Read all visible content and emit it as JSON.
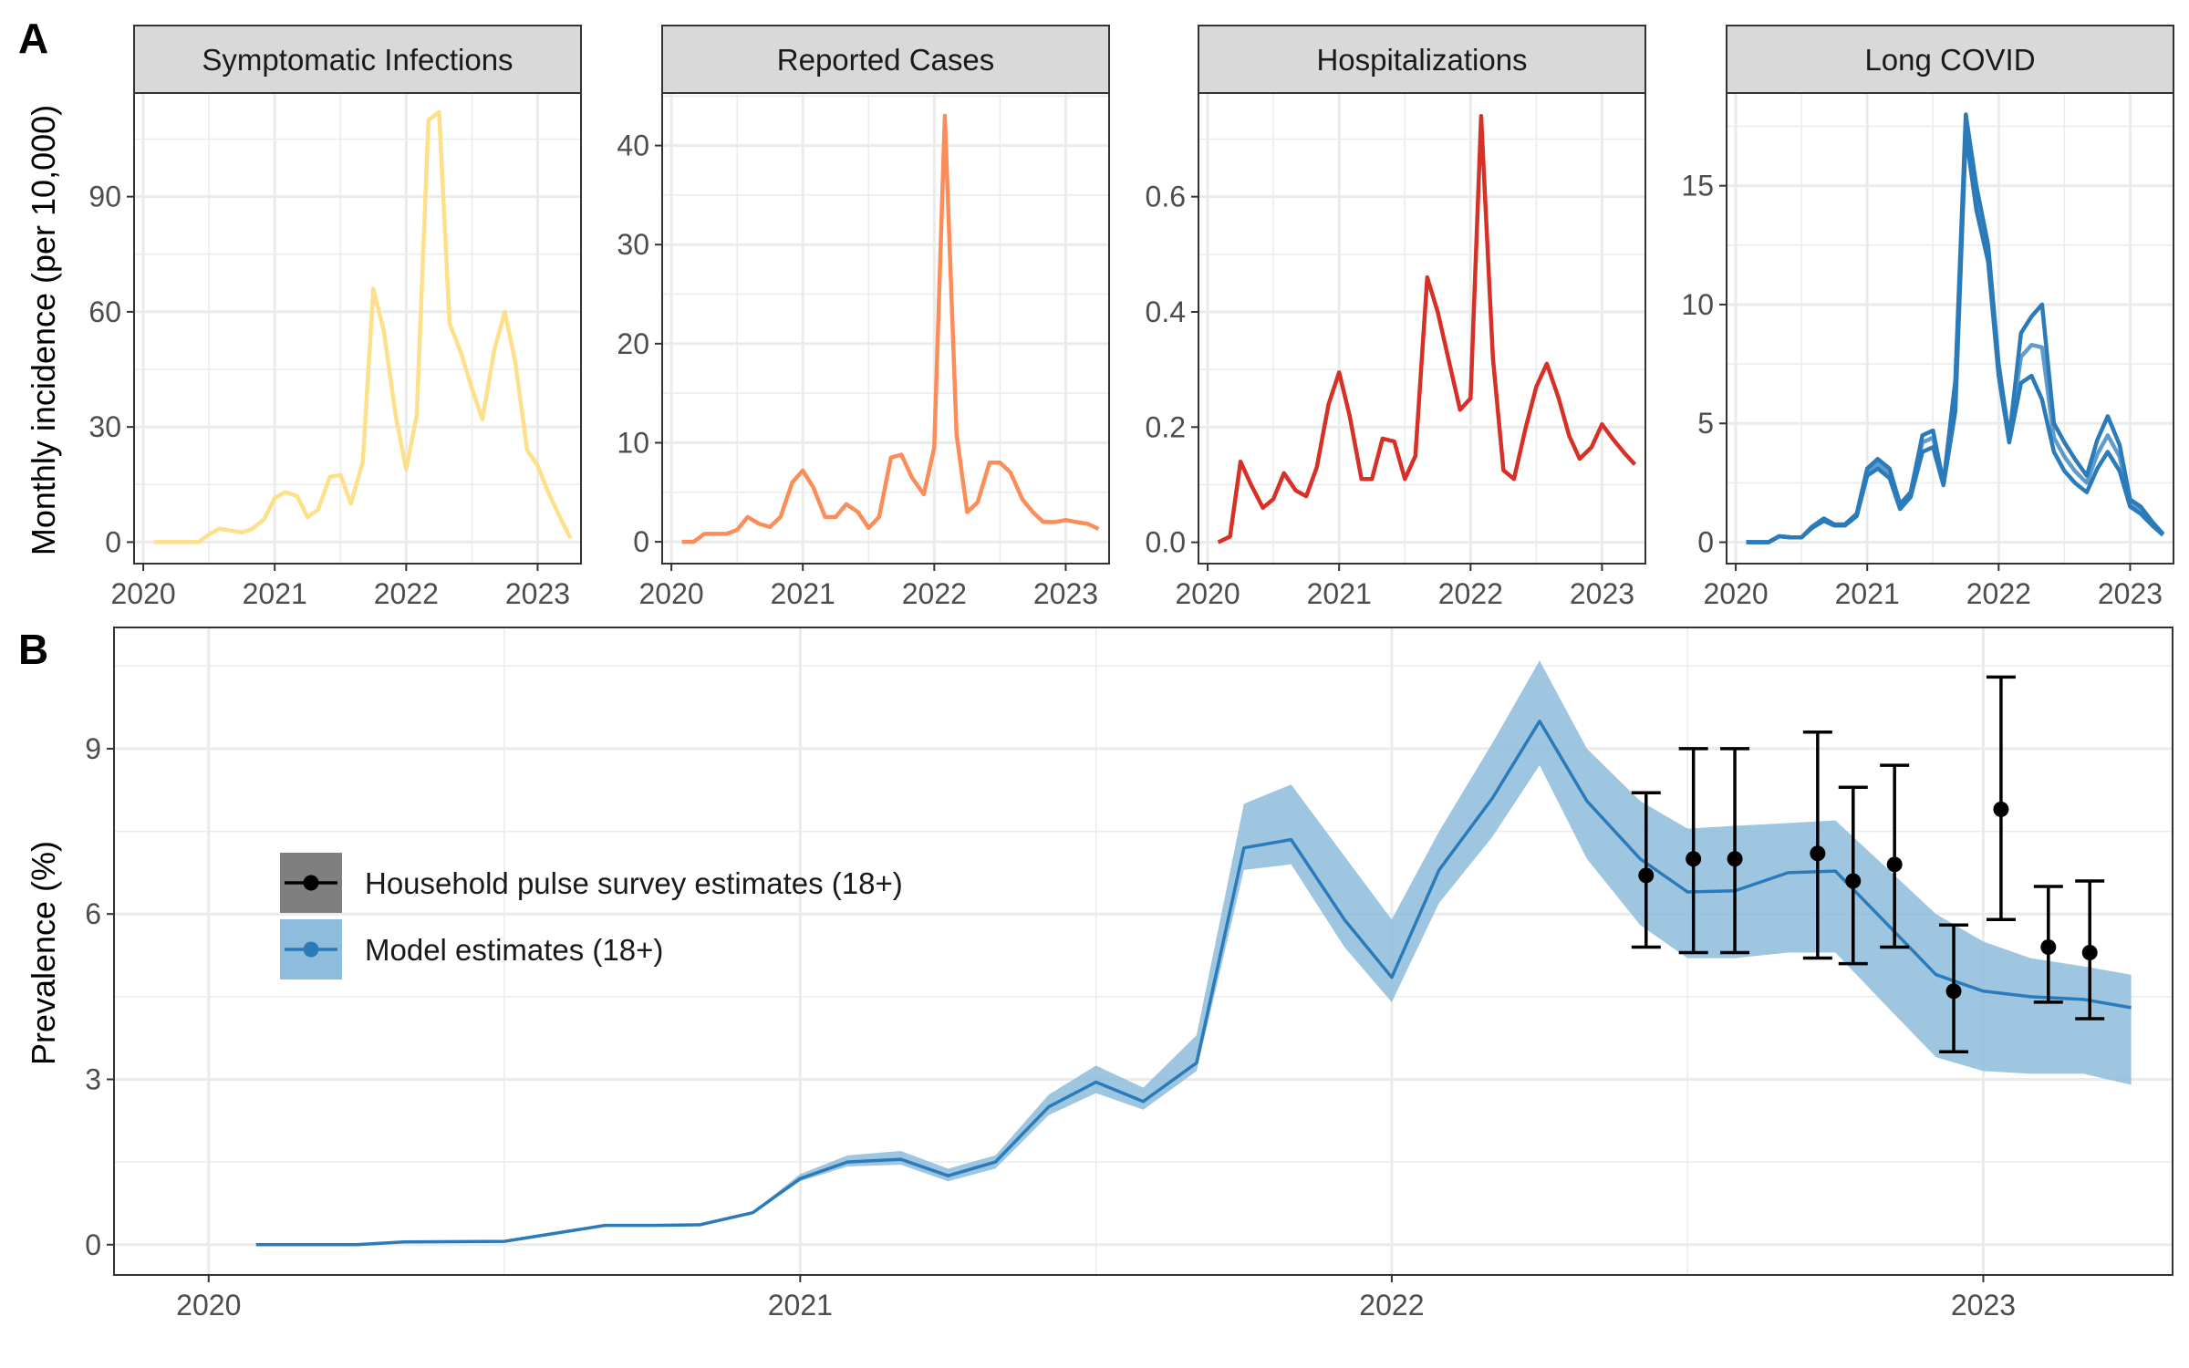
{
  "figure": {
    "panel_a_label": "A",
    "panel_b_label": "B"
  },
  "colors": {
    "strip_bg": "#d9d9d9",
    "grid": "#ebebeb",
    "frame": "#333333",
    "tick_text": "#4d4d4d",
    "model_line": "#2b7bba",
    "model_band": "#8ebcdc",
    "survey": "#000000"
  },
  "chart_data": [
    {
      "type": "line",
      "title": "Symptomatic Infections",
      "ylabel": "Monthly incidence (per 10,000)",
      "xlabel": "",
      "x_ticks": [
        2020,
        2021,
        2022,
        2023
      ],
      "y_ticks": [
        0,
        30,
        60,
        90
      ],
      "xlim": [
        2019.93,
        2023.33
      ],
      "ylim": [
        -5.6,
        117
      ],
      "color": "#fee08b",
      "grid": true,
      "x": [
        2020.08,
        2020.17,
        2020.25,
        2020.33,
        2020.42,
        2020.5,
        2020.58,
        2020.67,
        2020.75,
        2020.83,
        2020.92,
        2021.0,
        2021.08,
        2021.17,
        2021.25,
        2021.33,
        2021.42,
        2021.5,
        2021.58,
        2021.67,
        2021.75,
        2021.83,
        2021.92,
        2022.0,
        2022.08,
        2022.17,
        2022.25,
        2022.33,
        2022.42,
        2022.5,
        2022.58,
        2022.67,
        2022.75,
        2022.83,
        2022.92,
        2023.0,
        2023.08,
        2023.17,
        2023.25
      ],
      "series": [
        {
          "values": [
            0,
            0,
            0,
            0,
            0,
            2,
            3.5,
            3,
            2.5,
            3.5,
            6,
            11.5,
            13,
            12,
            6.5,
            8.5,
            17,
            17.5,
            10,
            21,
            66,
            55,
            33,
            19,
            33,
            110,
            112,
            57,
            49,
            40,
            32,
            50,
            60,
            47,
            24,
            20,
            13,
            6.5,
            1
          ]
        }
      ]
    },
    {
      "type": "line",
      "title": "Reported Cases",
      "ylabel": "",
      "xlabel": "",
      "x_ticks": [
        2020,
        2021,
        2022,
        2023
      ],
      "y_ticks": [
        0,
        10,
        20,
        30,
        40
      ],
      "xlim": [
        2019.93,
        2023.33
      ],
      "ylim": [
        -2.2,
        45.3
      ],
      "color": "#fc8d59",
      "grid": true,
      "x": [
        2020.08,
        2020.17,
        2020.25,
        2020.33,
        2020.42,
        2020.5,
        2020.58,
        2020.67,
        2020.75,
        2020.83,
        2020.92,
        2021.0,
        2021.08,
        2021.17,
        2021.25,
        2021.33,
        2021.42,
        2021.5,
        2021.58,
        2021.67,
        2021.75,
        2021.83,
        2021.92,
        2022.0,
        2022.08,
        2022.17,
        2022.25,
        2022.33,
        2022.42,
        2022.5,
        2022.58,
        2022.67,
        2022.75,
        2022.83,
        2022.92,
        2023.0,
        2023.08,
        2023.17,
        2023.25
      ],
      "series": [
        {
          "values": [
            0,
            0,
            0.8,
            0.8,
            0.8,
            1.2,
            2.5,
            1.8,
            1.5,
            2.5,
            6,
            7.2,
            5.5,
            2.5,
            2.5,
            3.8,
            3,
            1.4,
            2.5,
            8.5,
            8.8,
            6.5,
            4.8,
            9.5,
            43,
            10.8,
            3,
            4,
            8,
            8,
            7,
            4.3,
            3,
            2,
            2,
            2.2,
            2,
            1.8,
            1.3
          ]
        }
      ]
    },
    {
      "type": "line",
      "title": "Hospitalizations",
      "ylabel": "",
      "xlabel": "",
      "x_ticks": [
        2020,
        2021,
        2022,
        2023
      ],
      "y_ticks": [
        0.0,
        0.2,
        0.4,
        0.6
      ],
      "y_tick_labels": [
        "0.0",
        "0.2",
        "0.4",
        "0.6"
      ],
      "xlim": [
        2019.93,
        2023.33
      ],
      "ylim": [
        -0.037,
        0.78
      ],
      "color": "#d73027",
      "grid": true,
      "x": [
        2020.08,
        2020.17,
        2020.25,
        2020.33,
        2020.42,
        2020.5,
        2020.58,
        2020.67,
        2020.75,
        2020.83,
        2020.92,
        2021.0,
        2021.08,
        2021.17,
        2021.25,
        2021.33,
        2021.42,
        2021.5,
        2021.58,
        2021.67,
        2021.75,
        2021.83,
        2021.92,
        2022.0,
        2022.08,
        2022.17,
        2022.25,
        2022.33,
        2022.42,
        2022.5,
        2022.58,
        2022.67,
        2022.75,
        2022.83,
        2022.92,
        2023.0,
        2023.08,
        2023.17,
        2023.25
      ],
      "series": [
        {
          "values": [
            0,
            0.01,
            0.14,
            0.1,
            0.06,
            0.075,
            0.12,
            0.09,
            0.08,
            0.13,
            0.24,
            0.295,
            0.22,
            0.11,
            0.11,
            0.18,
            0.175,
            0.11,
            0.15,
            0.46,
            0.4,
            0.32,
            0.23,
            0.25,
            0.74,
            0.32,
            0.125,
            0.11,
            0.2,
            0.27,
            0.31,
            0.25,
            0.185,
            0.145,
            0.165,
            0.205,
            0.18,
            0.155,
            0.135
          ]
        }
      ]
    },
    {
      "type": "line",
      "title": "Long COVID",
      "ylabel": "",
      "xlabel": "",
      "x_ticks": [
        2020,
        2021,
        2022,
        2023
      ],
      "y_ticks": [
        0,
        5,
        10,
        15
      ],
      "xlim": [
        2019.93,
        2023.33
      ],
      "ylim": [
        -0.9,
        18.9
      ],
      "color": "#2b7bba",
      "grid": true,
      "x": [
        2020.08,
        2020.17,
        2020.25,
        2020.33,
        2020.42,
        2020.5,
        2020.58,
        2020.67,
        2020.75,
        2020.83,
        2020.92,
        2021.0,
        2021.08,
        2021.17,
        2021.25,
        2021.33,
        2021.42,
        2021.5,
        2021.58,
        2021.67,
        2021.75,
        2021.83,
        2021.92,
        2022.0,
        2022.08,
        2022.17,
        2022.25,
        2022.33,
        2022.42,
        2022.5,
        2022.58,
        2022.67,
        2022.75,
        2022.83,
        2022.92,
        2023.0,
        2023.08,
        2023.17,
        2023.25
      ],
      "series": [
        {
          "values": [
            0,
            0,
            0,
            0.25,
            0.2,
            0.2,
            0.65,
            1,
            0.75,
            0.75,
            1.2,
            3.1,
            3.5,
            3.1,
            1.6,
            2.1,
            4.5,
            4.7,
            2.5,
            6.8,
            18,
            15,
            12.5,
            7.5,
            4.4,
            8.8,
            9.5,
            10,
            5,
            4.2,
            3.5,
            2.8,
            4.3,
            5.3,
            4.1,
            1.8,
            1.5,
            0.85,
            0.35
          ]
        },
        {
          "values": [
            0,
            0,
            0,
            0.25,
            0.2,
            0.2,
            0.65,
            0.95,
            0.72,
            0.72,
            1.15,
            3.0,
            3.3,
            2.9,
            1.5,
            2.0,
            4.2,
            4.4,
            2.45,
            6.2,
            17.6,
            14.5,
            12.2,
            7.2,
            4.3,
            7.8,
            8.3,
            8.2,
            4.4,
            3.6,
            3.0,
            2.5,
            3.7,
            4.5,
            3.6,
            1.65,
            1.35,
            0.8,
            0.32
          ]
        },
        {
          "values": [
            0,
            0,
            0,
            0.25,
            0.2,
            0.2,
            0.6,
            0.9,
            0.7,
            0.7,
            1.1,
            2.8,
            3.1,
            2.7,
            1.4,
            1.9,
            3.8,
            4.0,
            2.4,
            5.5,
            17.2,
            14,
            11.8,
            7.0,
            4.2,
            6.7,
            7.0,
            6.0,
            3.8,
            3.0,
            2.5,
            2.1,
            3.1,
            3.8,
            3.0,
            1.5,
            1.2,
            0.7,
            0.3
          ]
        }
      ]
    },
    {
      "type": "line",
      "title": "",
      "ylabel": "Prevalence (%)",
      "xlabel": "",
      "x_ticks": [
        2020,
        2021,
        2022,
        2023
      ],
      "y_ticks": [
        0,
        3,
        6,
        9
      ],
      "xlim": [
        2019.84,
        2023.32
      ],
      "ylim": [
        -0.55,
        11.2
      ],
      "grid": true,
      "legend_position": "left",
      "series": [
        {
          "name": "Model estimates (18+)",
          "color": "#2b7bba",
          "band_color": "#8ebcdc",
          "x": [
            2020.08,
            2020.25,
            2020.33,
            2020.5,
            2020.67,
            2020.75,
            2020.83,
            2020.92,
            2021.0,
            2021.08,
            2021.17,
            2021.25,
            2021.33,
            2021.42,
            2021.5,
            2021.58,
            2021.67,
            2021.75,
            2021.83,
            2021.92,
            2022.0,
            2022.08,
            2022.17,
            2022.25,
            2022.33,
            2022.42,
            2022.5,
            2022.58,
            2022.67,
            2022.75,
            2022.83,
            2022.92,
            2023.0,
            2023.08,
            2023.17,
            2023.25
          ],
          "values": [
            0,
            0,
            0.05,
            0.06,
            0.35,
            0.35,
            0.36,
            0.58,
            1.2,
            1.5,
            1.55,
            1.25,
            1.5,
            2.5,
            2.95,
            2.6,
            3.3,
            7.2,
            7.35,
            5.9,
            4.85,
            6.8,
            8.1,
            9.5,
            8.05,
            7.0,
            6.4,
            6.42,
            6.75,
            6.78,
            5.9,
            4.9,
            4.6,
            4.5,
            4.45,
            4.3
          ],
          "lower": [
            0,
            0,
            0.05,
            0.06,
            0.35,
            0.35,
            0.36,
            0.56,
            1.15,
            1.42,
            1.45,
            1.15,
            1.38,
            2.35,
            2.75,
            2.45,
            3.15,
            6.8,
            6.9,
            5.4,
            4.4,
            6.2,
            7.4,
            8.7,
            7.0,
            5.8,
            5.2,
            5.2,
            5.3,
            5.3,
            4.4,
            3.4,
            3.15,
            3.1,
            3.1,
            2.9
          ],
          "upper": [
            0,
            0,
            0.05,
            0.06,
            0.35,
            0.35,
            0.37,
            0.6,
            1.28,
            1.62,
            1.7,
            1.38,
            1.62,
            2.72,
            3.25,
            2.85,
            3.8,
            8.0,
            8.35,
            7.05,
            5.9,
            7.5,
            9.1,
            10.6,
            9.0,
            8.05,
            7.55,
            7.6,
            7.65,
            7.7,
            6.9,
            6.0,
            5.5,
            5.2,
            5.05,
            4.9
          ]
        },
        {
          "name": "Household pulse survey estimates (18+)",
          "color": "#000000",
          "style": "points-errorbars",
          "x": [
            2022.43,
            2022.51,
            2022.58,
            2022.72,
            2022.78,
            2022.85,
            2022.95,
            2023.03,
            2023.11,
            2023.18
          ],
          "values": [
            6.7,
            7.0,
            7.0,
            7.1,
            6.6,
            6.9,
            4.6,
            7.9,
            5.4,
            5.3
          ],
          "lower": [
            5.4,
            5.3,
            5.3,
            5.2,
            5.1,
            5.4,
            3.5,
            5.9,
            4.4,
            4.1
          ],
          "upper": [
            8.2,
            9.0,
            9.0,
            9.3,
            8.3,
            8.7,
            5.8,
            10.3,
            6.5,
            6.6
          ]
        }
      ]
    }
  ]
}
